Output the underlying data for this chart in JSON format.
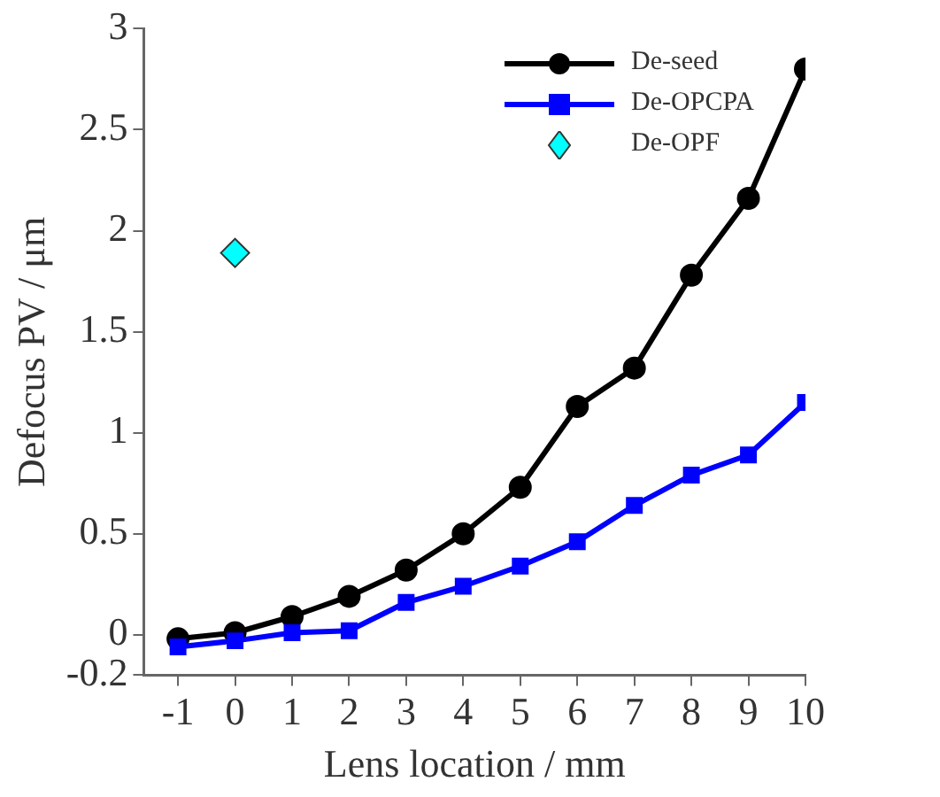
{
  "chart_data": {
    "type": "line",
    "xlabel": "Lens location / mm",
    "ylabel": "Defocus PV / μm",
    "x": [
      -1,
      0,
      1,
      2,
      3,
      4,
      5,
      6,
      7,
      8,
      9,
      10
    ],
    "xlim": [
      -1.6,
      10
    ],
    "xticks": [
      -1,
      0,
      1,
      2,
      3,
      4,
      5,
      6,
      7,
      8,
      9,
      10
    ],
    "ylim": [
      -0.2,
      3
    ],
    "yticks": [
      -0.2,
      0,
      0.5,
      1,
      1.5,
      2,
      2.5,
      3
    ],
    "grid": false,
    "legend": "top right",
    "line_style": "solid",
    "series": [
      {
        "name": "De-seed",
        "color": "#000000",
        "marker": "circle",
        "values": [
          -0.02,
          0.01,
          0.09,
          0.19,
          0.32,
          0.5,
          0.73,
          1.13,
          1.32,
          1.78,
          2.16,
          2.8
        ]
      },
      {
        "name": "De-OPCPA",
        "color": "#0000ff",
        "marker": "square",
        "values": [
          -0.06,
          -0.03,
          0.01,
          0.02,
          0.16,
          0.24,
          0.34,
          0.46,
          0.64,
          0.79,
          0.89,
          1.15
        ]
      },
      {
        "name": "De-OPF",
        "type": "scatter",
        "color": "#00ffff",
        "marker": "diamond",
        "x": [
          0
        ],
        "values": [
          1.89
        ]
      }
    ]
  }
}
